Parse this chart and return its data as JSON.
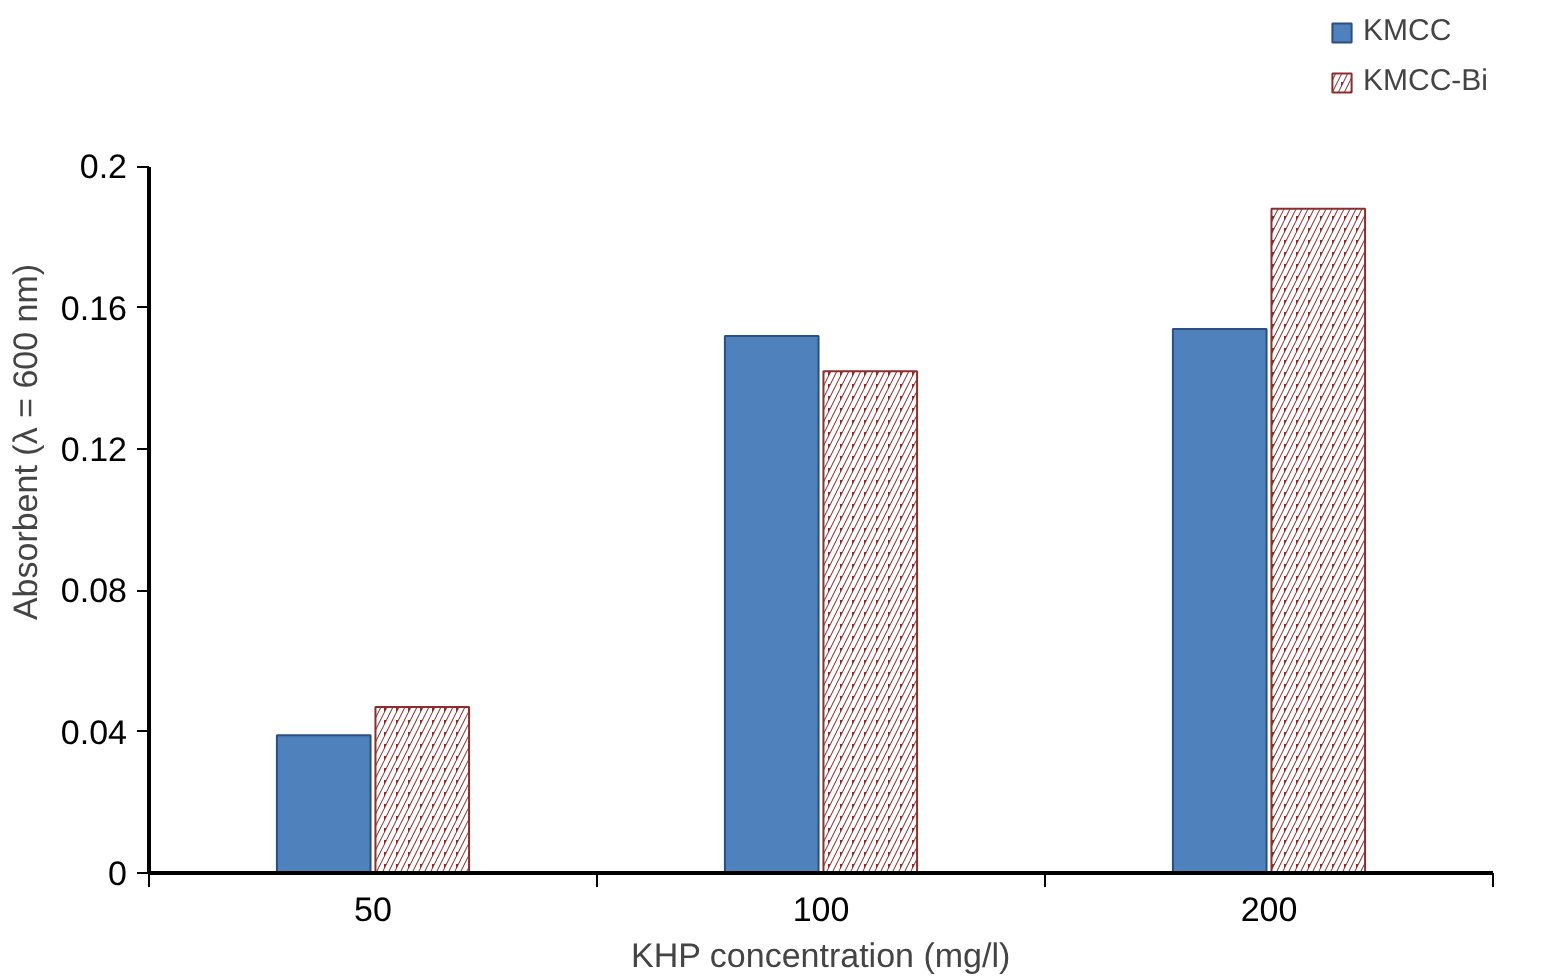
{
  "chart_data": {
    "type": "bar",
    "xlabel": "KHP concentration (mg/l)",
    "ylabel": "Absorbent (λ = 600 nm)",
    "categories": [
      "50",
      "100",
      "200"
    ],
    "series": [
      {
        "name": "KMCC",
        "color": "#4f81bd",
        "values": [
          0.039,
          0.152,
          0.154
        ]
      },
      {
        "name": "KMCC-Bi",
        "color": "#8b2e2e",
        "values": [
          0.047,
          0.142,
          0.188
        ]
      }
    ],
    "ylim": [
      0,
      0.2
    ],
    "yticks": [
      {
        "value": 0,
        "label": "0"
      },
      0.04,
      0.08,
      0.12,
      0.16,
      0.2
    ],
    "grid": false,
    "legend": "top right"
  }
}
